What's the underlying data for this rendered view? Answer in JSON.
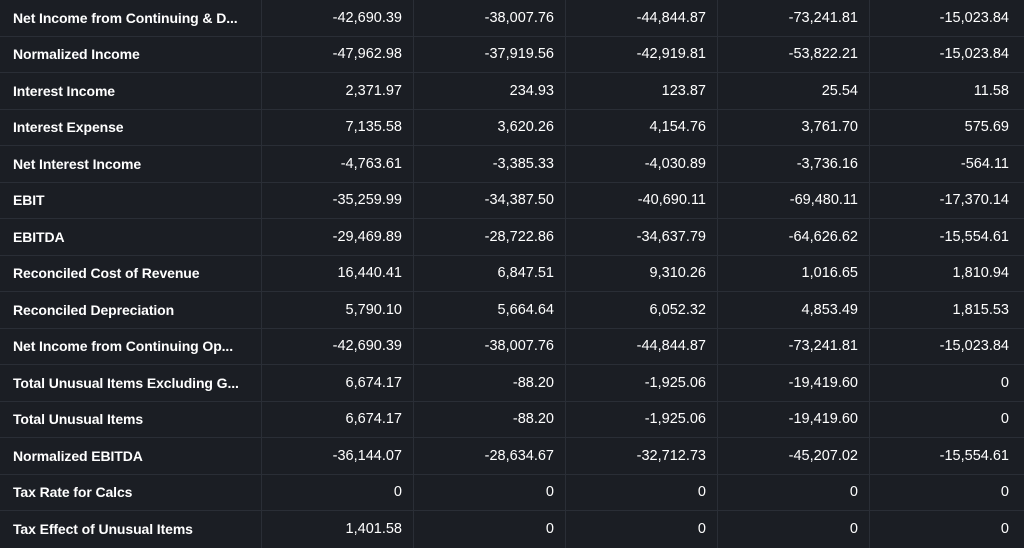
{
  "rows": [
    {
      "label": "Net Income from Continuing & D...",
      "values": [
        "-42,690.39",
        "-38,007.76",
        "-44,844.87",
        "-73,241.81",
        "-15,023.84"
      ]
    },
    {
      "label": "Normalized Income",
      "values": [
        "-47,962.98",
        "-37,919.56",
        "-42,919.81",
        "-53,822.21",
        "-15,023.84"
      ]
    },
    {
      "label": "Interest Income",
      "values": [
        "2,371.97",
        "234.93",
        "123.87",
        "25.54",
        "11.58"
      ]
    },
    {
      "label": "Interest Expense",
      "values": [
        "7,135.58",
        "3,620.26",
        "4,154.76",
        "3,761.70",
        "575.69"
      ]
    },
    {
      "label": "Net Interest Income",
      "values": [
        "-4,763.61",
        "-3,385.33",
        "-4,030.89",
        "-3,736.16",
        "-564.11"
      ]
    },
    {
      "label": "EBIT",
      "values": [
        "-35,259.99",
        "-34,387.50",
        "-40,690.11",
        "-69,480.11",
        "-17,370.14"
      ]
    },
    {
      "label": "EBITDA",
      "values": [
        "-29,469.89",
        "-28,722.86",
        "-34,637.79",
        "-64,626.62",
        "-15,554.61"
      ]
    },
    {
      "label": "Reconciled Cost of Revenue",
      "values": [
        "16,440.41",
        "6,847.51",
        "9,310.26",
        "1,016.65",
        "1,810.94"
      ]
    },
    {
      "label": "Reconciled Depreciation",
      "values": [
        "5,790.10",
        "5,664.64",
        "6,052.32",
        "4,853.49",
        "1,815.53"
      ]
    },
    {
      "label": "Net Income from Continuing Op...",
      "values": [
        "-42,690.39",
        "-38,007.76",
        "-44,844.87",
        "-73,241.81",
        "-15,023.84"
      ]
    },
    {
      "label": "Total Unusual Items Excluding G...",
      "values": [
        "6,674.17",
        "-88.20",
        "-1,925.06",
        "-19,419.60",
        "0"
      ]
    },
    {
      "label": "Total Unusual Items",
      "values": [
        "6,674.17",
        "-88.20",
        "-1,925.06",
        "-19,419.60",
        "0"
      ]
    },
    {
      "label": "Normalized EBITDA",
      "values": [
        "-36,144.07",
        "-28,634.67",
        "-32,712.73",
        "-45,207.02",
        "-15,554.61"
      ]
    },
    {
      "label": "Tax Rate for Calcs",
      "values": [
        "0",
        "0",
        "0",
        "0",
        "0"
      ]
    },
    {
      "label": "Tax Effect of Unusual Items",
      "values": [
        "1,401.58",
        "0",
        "0",
        "0",
        "0"
      ]
    }
  ]
}
